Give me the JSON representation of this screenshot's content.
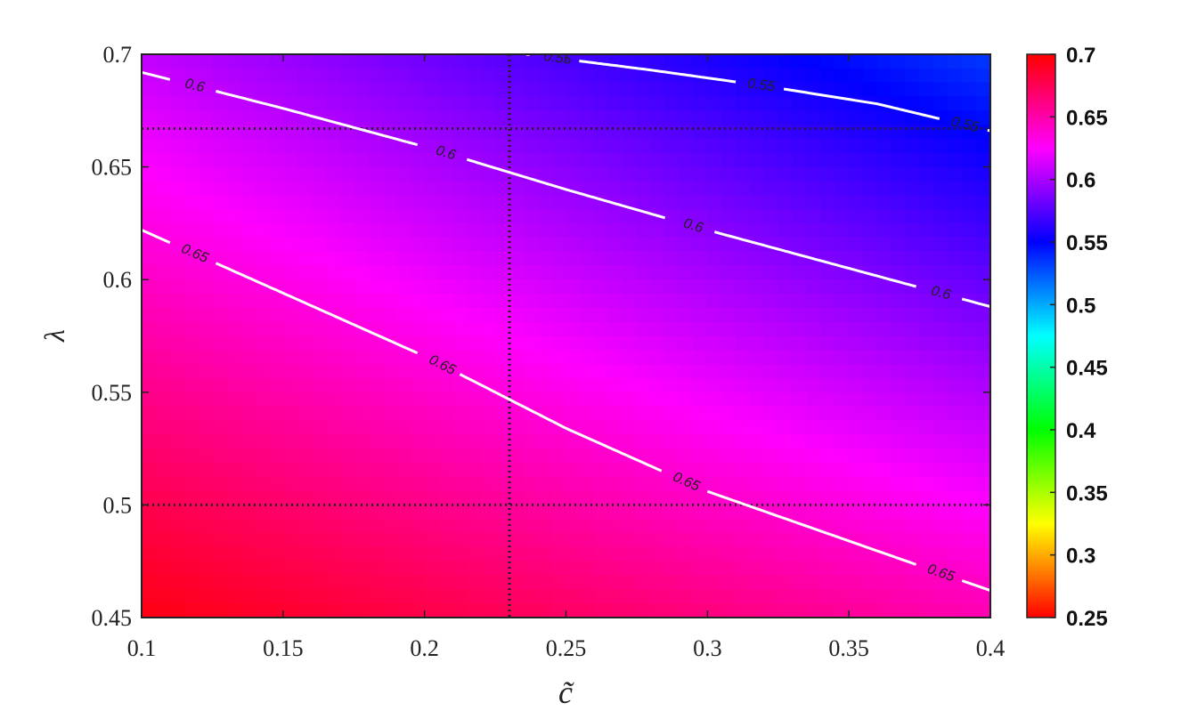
{
  "chart_data": {
    "type": "heatmap",
    "title": "",
    "xlabel": "c̃",
    "ylabel": "λ",
    "xlim": [
      0.1,
      0.4
    ],
    "ylim": [
      0.45,
      0.7
    ],
    "x_ticks": [
      "0.1",
      "0.15",
      "0.2",
      "0.25",
      "0.3",
      "0.35",
      "0.4"
    ],
    "y_ticks": [
      "0.45",
      "0.5",
      "0.55",
      "0.6",
      "0.65",
      "0.7"
    ],
    "colorbar": {
      "range": [
        0.25,
        0.7
      ],
      "ticks": [
        "0.25",
        "0.3",
        "0.35",
        "0.4",
        "0.45",
        "0.5",
        "0.55",
        "0.6",
        "0.65",
        "0.7"
      ],
      "colormap": "hsv (red → yellow → green → cyan → blue → magenta → red)"
    },
    "surface_corners": {
      "x0.1_y0.45": 0.695,
      "x0.4_y0.45": 0.648,
      "x0.1_y0.7": 0.607,
      "x0.4_y0.7": 0.533
    },
    "contours": [
      {
        "level": 0.55,
        "label": "0.55",
        "points": [
          [
            0.236,
            0.7
          ],
          [
            0.28,
            0.693
          ],
          [
            0.32,
            0.686
          ],
          [
            0.36,
            0.678
          ],
          [
            0.4,
            0.666
          ]
        ]
      },
      {
        "level": 0.6,
        "label": "0.6",
        "points": [
          [
            0.1,
            0.692
          ],
          [
            0.15,
            0.676
          ],
          [
            0.2,
            0.659
          ],
          [
            0.25,
            0.64
          ],
          [
            0.3,
            0.622
          ],
          [
            0.35,
            0.605
          ],
          [
            0.4,
            0.588
          ]
        ]
      },
      {
        "level": 0.65,
        "label": "0.65",
        "points": [
          [
            0.1,
            0.622
          ],
          [
            0.15,
            0.594
          ],
          [
            0.2,
            0.566
          ],
          [
            0.25,
            0.534
          ],
          [
            0.3,
            0.506
          ],
          [
            0.35,
            0.484
          ],
          [
            0.4,
            0.462
          ]
        ]
      }
    ],
    "reference_lines": {
      "vertical_x": [
        0.23
      ],
      "horizontal_y": [
        0.5,
        0.667
      ]
    },
    "grid": false,
    "legend": "none"
  }
}
